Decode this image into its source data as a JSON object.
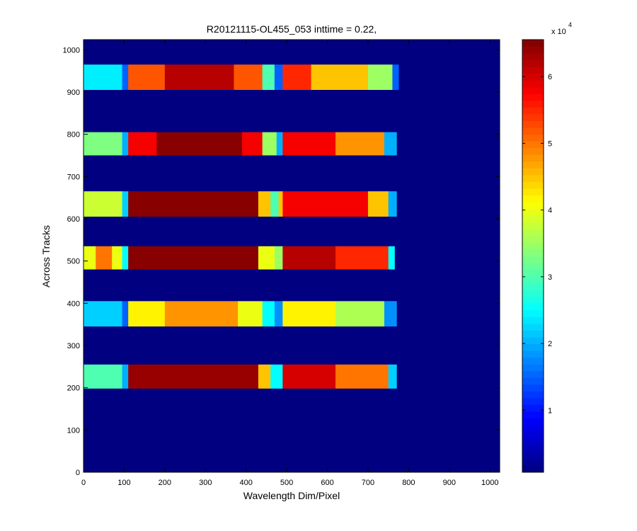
{
  "chart_data": {
    "type": "heatmap",
    "title": "R20121115-OL455_053 inttime = 0.22,",
    "xlabel": "Wavelength Dim/Pixel",
    "ylabel": "Across Tracks",
    "xlim": [
      0,
      1024
    ],
    "ylim": [
      0,
      1024
    ],
    "xticks": [
      0,
      100,
      200,
      300,
      400,
      500,
      600,
      700,
      800,
      900,
      1000
    ],
    "yticks": [
      0,
      100,
      200,
      300,
      400,
      500,
      600,
      700,
      800,
      900,
      1000
    ],
    "colormap": "jet",
    "clim": [
      700,
      65535
    ],
    "background_value": 700,
    "bands": [
      {
        "y": [
          905,
          965
        ],
        "segments": [
          [
            0,
            95,
            24000
          ],
          [
            95,
            110,
            15000
          ],
          [
            110,
            200,
            52000
          ],
          [
            200,
            370,
            62000
          ],
          [
            370,
            440,
            52000
          ],
          [
            440,
            470,
            30000
          ],
          [
            470,
            490,
            15000
          ],
          [
            490,
            560,
            55000
          ],
          [
            560,
            700,
            45000
          ],
          [
            700,
            760,
            35000
          ],
          [
            760,
            775,
            15000
          ]
        ]
      },
      {
        "y": [
          750,
          805
        ],
        "segments": [
          [
            0,
            95,
            33000
          ],
          [
            95,
            110,
            20000
          ],
          [
            110,
            180,
            58000
          ],
          [
            180,
            390,
            65000
          ],
          [
            390,
            440,
            58000
          ],
          [
            440,
            475,
            35000
          ],
          [
            475,
            490,
            20000
          ],
          [
            490,
            620,
            58000
          ],
          [
            620,
            740,
            48000
          ],
          [
            740,
            770,
            20000
          ]
        ]
      },
      {
        "y": [
          605,
          665
        ],
        "segments": [
          [
            0,
            95,
            38000
          ],
          [
            95,
            110,
            22000
          ],
          [
            110,
            430,
            65000
          ],
          [
            430,
            460,
            45000
          ],
          [
            460,
            480,
            30000
          ],
          [
            480,
            490,
            45000
          ],
          [
            490,
            700,
            58000
          ],
          [
            700,
            750,
            45000
          ],
          [
            750,
            770,
            20000
          ]
        ]
      },
      {
        "y": [
          480,
          535
        ],
        "segments": [
          [
            0,
            30,
            40000
          ],
          [
            30,
            70,
            50000
          ],
          [
            70,
            95,
            40000
          ],
          [
            95,
            110,
            25000
          ],
          [
            110,
            430,
            65000
          ],
          [
            430,
            470,
            40000
          ],
          [
            470,
            490,
            35000
          ],
          [
            490,
            620,
            62000
          ],
          [
            620,
            750,
            55000
          ],
          [
            750,
            765,
            25000
          ]
        ]
      },
      {
        "y": [
          345,
          405
        ],
        "segments": [
          [
            0,
            95,
            22000
          ],
          [
            95,
            110,
            15000
          ],
          [
            110,
            200,
            42000
          ],
          [
            200,
            380,
            48000
          ],
          [
            380,
            440,
            40000
          ],
          [
            440,
            470,
            25000
          ],
          [
            470,
            490,
            18000
          ],
          [
            490,
            620,
            42000
          ],
          [
            620,
            740,
            36000
          ],
          [
            740,
            770,
            18000
          ]
        ]
      },
      {
        "y": [
          198,
          255
        ],
        "segments": [
          [
            0,
            95,
            30000
          ],
          [
            95,
            110,
            20000
          ],
          [
            110,
            430,
            64000
          ],
          [
            430,
            460,
            45000
          ],
          [
            460,
            490,
            25000
          ],
          [
            490,
            620,
            60000
          ],
          [
            620,
            750,
            50000
          ],
          [
            750,
            770,
            22000
          ]
        ]
      }
    ],
    "colorbar_ticks": [
      {
        "value": 10000,
        "label": "1"
      },
      {
        "value": 20000,
        "label": "2"
      },
      {
        "value": 30000,
        "label": "3"
      },
      {
        "value": 40000,
        "label": "4"
      },
      {
        "value": 50000,
        "label": "5"
      },
      {
        "value": 60000,
        "label": "6"
      }
    ],
    "colorbar_exponent": "x 10",
    "colorbar_exponent_power": "4"
  }
}
